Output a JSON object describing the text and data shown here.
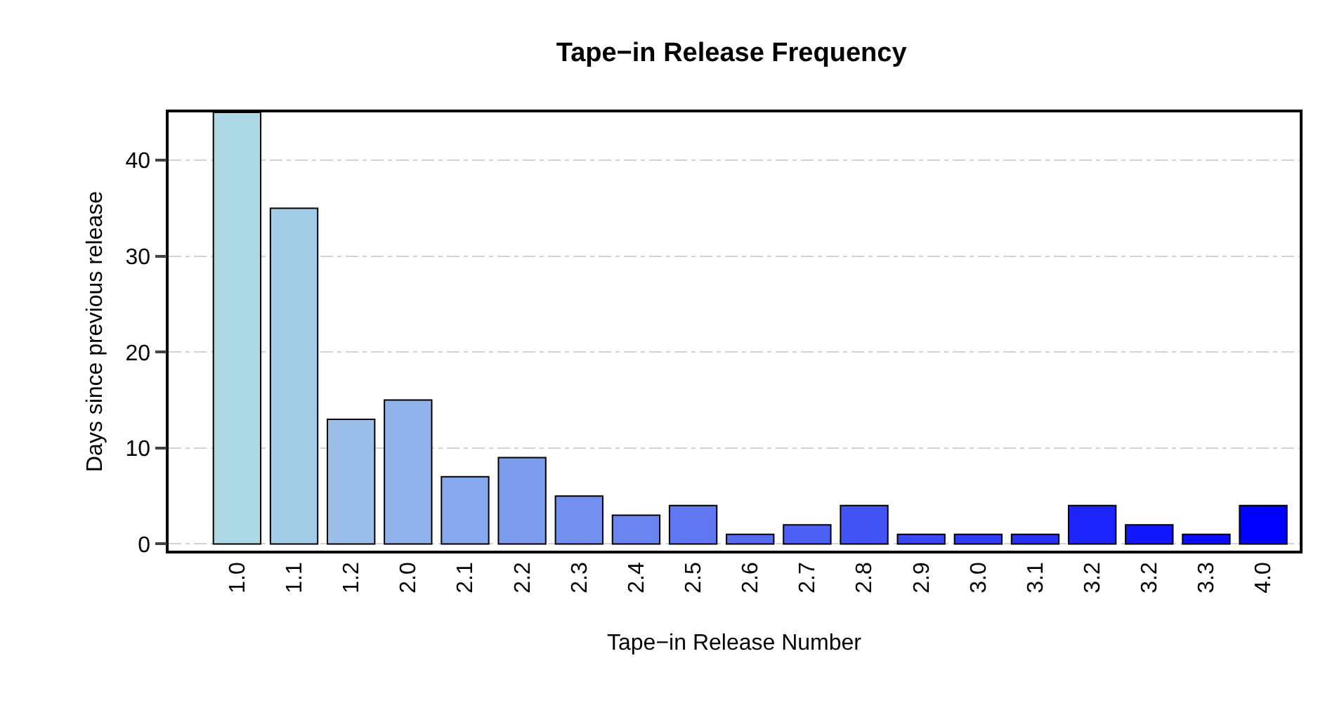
{
  "chart_data": {
    "type": "bar",
    "title": "Tape−in Release Frequency",
    "xlabel": "Tape−in Release Number",
    "ylabel": "Days since previous release",
    "categories": [
      "1.0",
      "1.1",
      "1.2",
      "2.0",
      "2.1",
      "2.2",
      "2.3",
      "2.4",
      "2.5",
      "2.6",
      "2.7",
      "2.8",
      "2.9",
      "3.0",
      "3.1",
      "3.2",
      "3.2",
      "3.3",
      "4.0"
    ],
    "values": [
      45,
      35,
      13,
      15,
      7,
      9,
      5,
      3,
      4,
      1,
      2,
      4,
      1,
      1,
      1,
      4,
      2,
      1,
      4
    ],
    "colors": [
      "#add8e6",
      "#a3cce7",
      "#9ac0e9",
      "#90b4ea",
      "#87a8ec",
      "#7d9ced",
      "#7390ee",
      "#6a84f0",
      "#6078f1",
      "#566cf3",
      "#4d60f4",
      "#4354f5",
      "#3a48f7",
      "#303cf8",
      "#2630fa",
      "#1d24fb",
      "#1318fc",
      "#0a0cfe",
      "#0000ff"
    ],
    "ylim": [
      -0.7,
      45
    ],
    "yticks": [
      0,
      10,
      20,
      30,
      40
    ],
    "grid": "y"
  }
}
